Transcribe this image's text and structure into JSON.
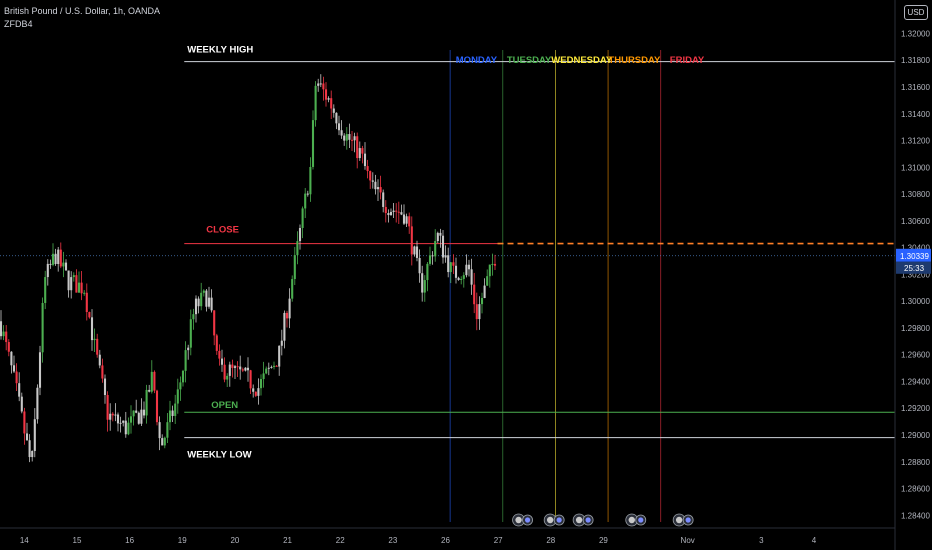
{
  "header": {
    "title": "British Pound / U.S. Dollar, 1h, OANDA",
    "author": "ZFDB4",
    "currency_button": "USD"
  },
  "price_tags": {
    "current": "1.30339",
    "countdown": "25:33",
    "current_color": "#2962ff"
  },
  "colors": {
    "up": "#4caf50",
    "down": "#f23645",
    "neutral": "#c8c8c8",
    "level_line": "#d1d4dc",
    "close_line": "#f23645",
    "open_line": "#4caf50",
    "dashed_line": "#ff7f27",
    "monday": "#2962ff",
    "tuesday": "#4caf50",
    "wednesday": "#ffeb3b",
    "thursday": "#ff9800",
    "friday": "#f23645"
  },
  "chart_data": {
    "type": "candlestick",
    "symbol": "GBPUSD",
    "timeframe": "1h",
    "y_axis": {
      "range": [
        1.2835,
        1.3225
      ],
      "ticks": [
        1.32,
        1.318,
        1.316,
        1.314,
        1.312,
        1.31,
        1.308,
        1.306,
        1.304,
        1.302,
        1.3,
        1.298,
        1.296,
        1.294,
        1.292,
        1.29,
        1.288,
        1.286,
        1.284
      ],
      "tick_labels": [
        "1.32000",
        "1.31800",
        "1.31600",
        "1.31400",
        "1.31200",
        "1.31000",
        "1.30800",
        "1.30600",
        "1.30400",
        "1.30200",
        "1.30000",
        "1.29800",
        "1.29600",
        "1.29400",
        "1.29200",
        "1.29000",
        "1.28800",
        "1.28600",
        "1.28400"
      ]
    },
    "x_axis": {
      "range": [
        0,
        17
      ],
      "ticks": [
        {
          "pos": 0.5,
          "label": "14"
        },
        {
          "pos": 1.5,
          "label": "15"
        },
        {
          "pos": 2.5,
          "label": "16"
        },
        {
          "pos": 3.5,
          "label": "19"
        },
        {
          "pos": 4.5,
          "label": "20"
        },
        {
          "pos": 5.5,
          "label": "21"
        },
        {
          "pos": 6.5,
          "label": "22"
        },
        {
          "pos": 7.5,
          "label": "23"
        },
        {
          "pos": 8.5,
          "label": "26"
        },
        {
          "pos": 9.5,
          "label": "27"
        },
        {
          "pos": 10.5,
          "label": "28"
        },
        {
          "pos": 11.5,
          "label": "29"
        },
        {
          "pos": 13.1,
          "label": "Nov"
        },
        {
          "pos": 14.5,
          "label": "3"
        },
        {
          "pos": 15.5,
          "label": "4"
        }
      ]
    },
    "candles_end_x": 9.45,
    "anchor_path": [
      [
        0.0,
        1.2985
      ],
      [
        0.3,
        1.2935
      ],
      [
        0.6,
        1.2875
      ],
      [
        0.85,
        1.3015
      ],
      [
        1.05,
        1.3035
      ],
      [
        1.3,
        1.3015
      ],
      [
        1.6,
        1.301
      ],
      [
        1.8,
        1.2965
      ],
      [
        2.05,
        1.2915
      ],
      [
        2.4,
        1.2905
      ],
      [
        2.75,
        1.292
      ],
      [
        2.9,
        1.2945
      ],
      [
        3.05,
        1.289
      ],
      [
        3.35,
        1.2925
      ],
      [
        3.7,
        1.2995
      ],
      [
        3.95,
        1.3005
      ],
      [
        4.15,
        1.295
      ],
      [
        4.6,
        1.2945
      ],
      [
        4.9,
        1.2935
      ],
      [
        5.3,
        1.296
      ],
      [
        5.65,
        1.304
      ],
      [
        5.9,
        1.31
      ],
      [
        6.0,
        1.3165
      ],
      [
        6.25,
        1.315
      ],
      [
        6.55,
        1.3125
      ],
      [
        6.85,
        1.311
      ],
      [
        7.05,
        1.3085
      ],
      [
        7.4,
        1.307
      ],
      [
        7.7,
        1.3065
      ],
      [
        8.0,
        1.301
      ],
      [
        8.3,
        1.305
      ],
      [
        8.6,
        1.302
      ],
      [
        8.9,
        1.3025
      ],
      [
        9.05,
        1.299
      ],
      [
        9.3,
        1.302
      ],
      [
        9.45,
        1.304
      ]
    ],
    "levels": [
      {
        "name": "weekly-high",
        "label": "WEEKLY HIGH",
        "value": 1.3179,
        "x_start": 3.5,
        "x_end": 17,
        "style": "solid"
      },
      {
        "name": "weekly-low",
        "label": "WEEKLY LOW",
        "value": 1.2898,
        "x_start": 3.5,
        "x_end": 17,
        "style": "solid"
      },
      {
        "name": "close",
        "label": "CLOSE",
        "value": 1.3043,
        "x_start": 3.5,
        "x_end": 9.45,
        "style": "solid"
      },
      {
        "name": "open",
        "label": "OPEN",
        "value": 1.2917,
        "x_start": 3.5,
        "x_end": 17,
        "style": "solid"
      },
      {
        "name": "projection",
        "label": "",
        "value": 1.3043,
        "x_start": 9.45,
        "x_end": 17,
        "style": "dashed"
      }
    ],
    "day_separators": [
      {
        "day": "MONDAY",
        "x": 8.55
      },
      {
        "day": "TUESDAY",
        "x": 9.55
      },
      {
        "day": "WEDNESDAY",
        "x": 10.55
      },
      {
        "day": "THURSDAY",
        "x": 11.55
      },
      {
        "day": "FRIDAY",
        "x": 12.55
      }
    ],
    "day_labels": [
      "MONDAY",
      "TUESDAY",
      "WEDNESDAY",
      "THURSDAY",
      "FRIDAY"
    ],
    "event_markers": [
      {
        "x": 9.85
      },
      {
        "x": 10.45
      },
      {
        "x": 11.0
      },
      {
        "x": 12.0
      },
      {
        "x": 12.9
      }
    ]
  }
}
